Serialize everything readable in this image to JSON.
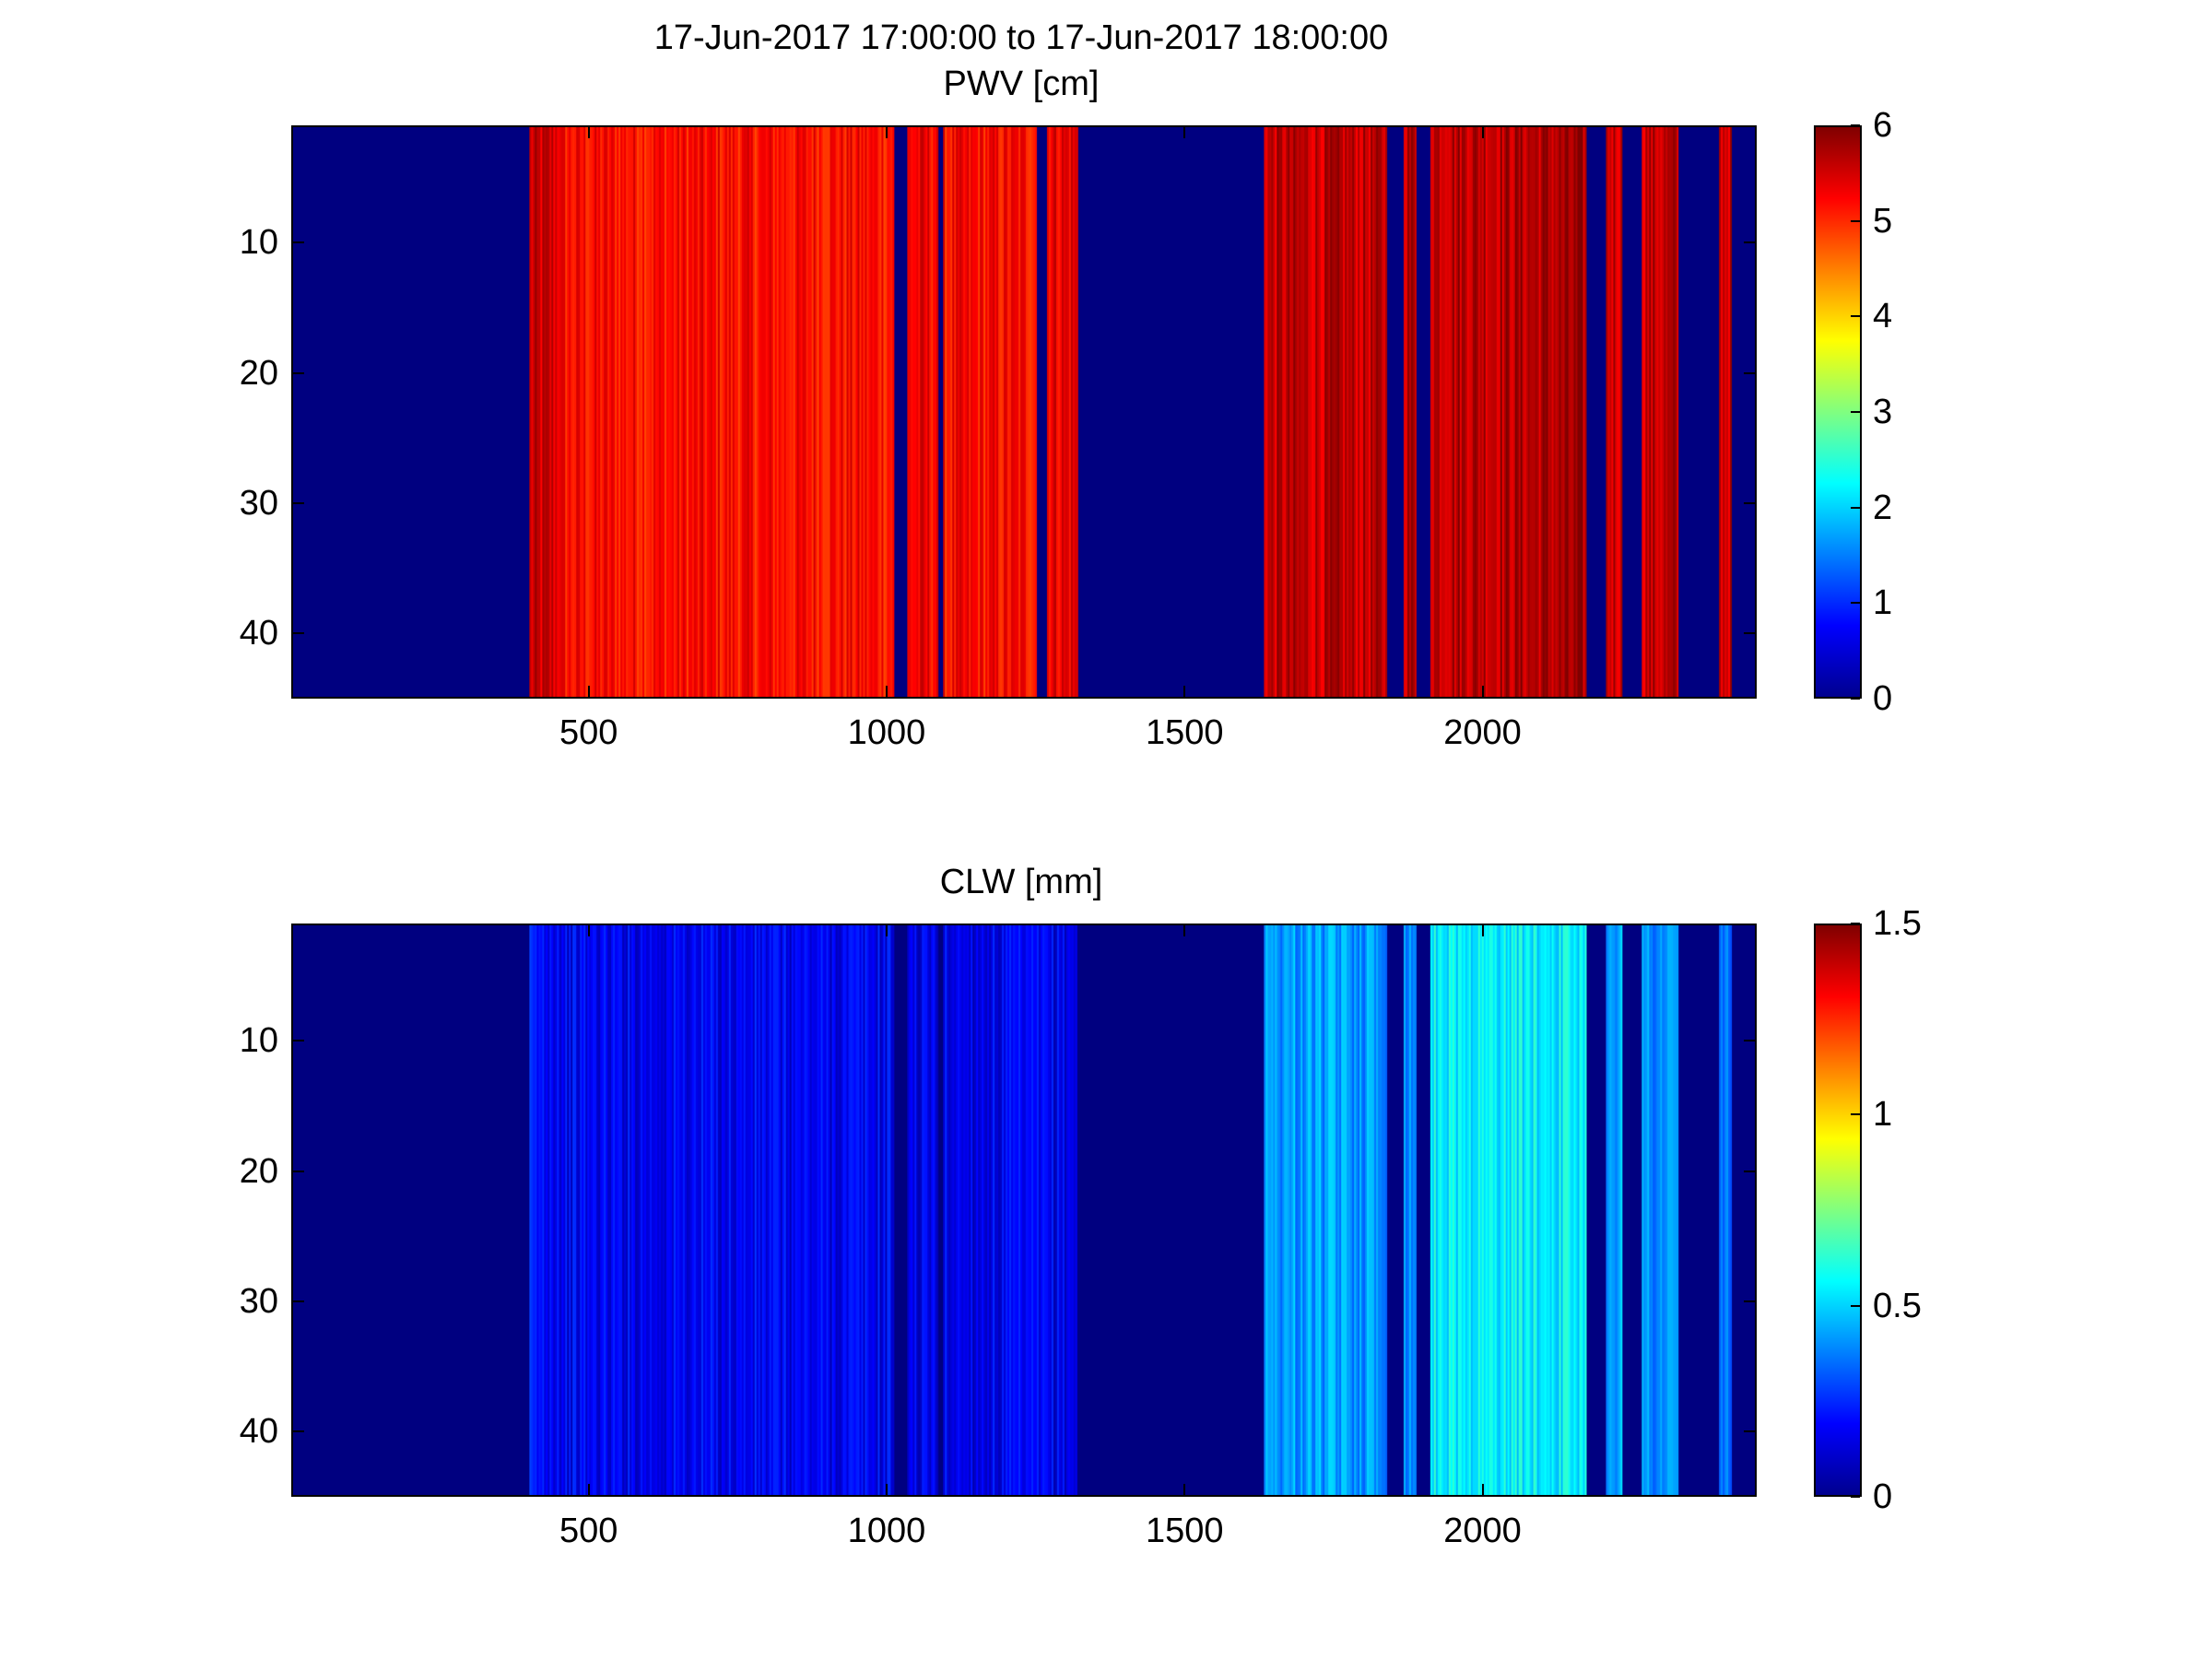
{
  "figure": {
    "time_range_title": "17-Jun-2017 17:00:00 to 17-Jun-2017 18:00:00"
  },
  "chart_data": [
    {
      "type": "heatmap",
      "title": "PWV [cm]",
      "xlim": [
        1,
        2460
      ],
      "ylim": [
        45,
        1
      ],
      "xticks": [
        "500",
        "1000",
        "1500",
        "2000"
      ],
      "yticks": [
        "10",
        "20",
        "30",
        "40"
      ],
      "colorbar": {
        "range": [
          0,
          6
        ],
        "ticks": [
          "0",
          "1",
          "2",
          "3",
          "4",
          "5",
          "6"
        ],
        "colormap": "jet"
      },
      "bands": [
        {
          "x": [
            400,
            450
          ],
          "value": 5.5
        },
        {
          "x": [
            450,
            1010
          ],
          "value": 5.2
        },
        {
          "x": [
            1035,
            1085
          ],
          "value": 5.3
        },
        {
          "x": [
            1095,
            1250
          ],
          "value": 5.2
        },
        {
          "x": [
            1270,
            1320
          ],
          "value": 5.4
        },
        {
          "x": [
            1635,
            1840
          ],
          "value": 5.6
        },
        {
          "x": [
            1870,
            1890
          ],
          "value": 5.7
        },
        {
          "x": [
            1915,
            2175
          ],
          "value": 5.7
        },
        {
          "x": [
            2210,
            2235
          ],
          "value": 5.6
        },
        {
          "x": [
            2270,
            2330
          ],
          "value": 5.6
        },
        {
          "x": [
            2400,
            2420
          ],
          "value": 5.6
        }
      ]
    },
    {
      "type": "heatmap",
      "title": "CLW [mm]",
      "xlim": [
        1,
        2460
      ],
      "ylim": [
        45,
        1
      ],
      "xticks": [
        "500",
        "1000",
        "1500",
        "2000"
      ],
      "yticks": [
        "10",
        "20",
        "30",
        "40"
      ],
      "colorbar": {
        "range": [
          0,
          1.5
        ],
        "ticks": [
          "0",
          "0.5",
          "1",
          "1.5"
        ],
        "colormap": "jet"
      },
      "bands": [
        {
          "x": [
            400,
            450
          ],
          "value": 0.2
        },
        {
          "x": [
            450,
            1010
          ],
          "value": 0.17
        },
        {
          "x": [
            1035,
            1085
          ],
          "value": 0.15
        },
        {
          "x": [
            1095,
            1320
          ],
          "value": 0.16
        },
        {
          "x": [
            1635,
            1840
          ],
          "value": 0.42
        },
        {
          "x": [
            1870,
            1890
          ],
          "value": 0.4
        },
        {
          "x": [
            1915,
            2175
          ],
          "value": 0.55
        },
        {
          "x": [
            2210,
            2235
          ],
          "value": 0.45
        },
        {
          "x": [
            2270,
            2330
          ],
          "value": 0.4
        },
        {
          "x": [
            2400,
            2420
          ],
          "value": 0.35
        }
      ]
    }
  ]
}
